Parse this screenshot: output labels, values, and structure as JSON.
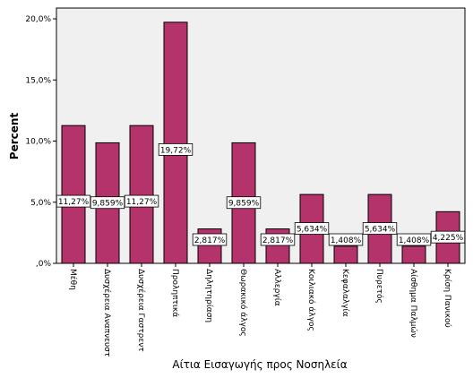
{
  "chart_data": {
    "type": "bar",
    "categories": [
      "Μέθη",
      "Δυσχέρεια Αναπνευστ",
      "Δυσχέρεια Γαστρεντ",
      "Προληπτικά",
      "Δηλητηρίαση",
      "Θωρακικό άλγος",
      "Αλλεργία",
      "Κοιλιακό άλγος",
      "Κεφαλαλγία",
      "Πυρετός",
      "Αίσθημα Παλμών",
      "Κρίση Πανικού"
    ],
    "values": [
      11.27,
      9.859,
      11.27,
      19.72,
      2.817,
      9.859,
      2.817,
      5.634,
      1.408,
      5.634,
      1.408,
      4.225
    ],
    "data_labels": [
      "11,27%",
      "9,859%",
      "11,27%",
      "19,72%",
      "2,817%",
      "9,859%",
      "2,817%",
      "5,634%",
      "1,408%",
      "5,634%",
      "1,408%",
      "4,225%"
    ],
    "y_ticks": [
      0,
      5,
      10,
      15,
      20
    ],
    "y_tick_labels": [
      ",0%",
      "5,0%",
      "10,0%",
      "15,0%",
      "20,0%"
    ],
    "ylim": [
      0,
      21
    ],
    "title": "",
    "xlabel": "Αίτια Εισαγωγής προς Νοσηλεία",
    "ylabel": "Percent",
    "colors": {
      "bar_fill": "#b5336b",
      "bar_stroke": "#000000",
      "plot_bg": "#f0f0f0",
      "page_bg": "#ffffff"
    },
    "grid": false,
    "legend": "none"
  }
}
